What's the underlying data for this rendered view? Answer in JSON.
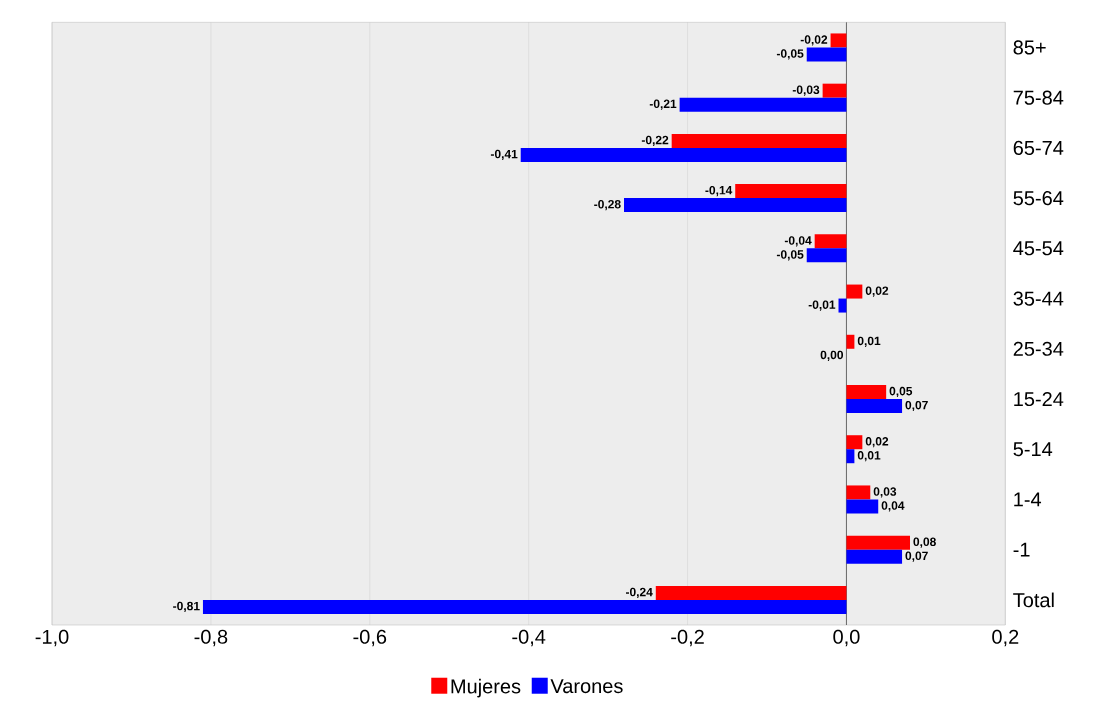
{
  "chart_data": {
    "type": "bar",
    "orientation": "horizontal",
    "categories": [
      "85+",
      "75-84",
      "65-74",
      "55-64",
      "45-54",
      "35-44",
      "25-34",
      "15-24",
      "5-14",
      "1-4",
      "-1",
      "Total"
    ],
    "series": [
      {
        "name": "Mujeres",
        "color": "#ff0000",
        "values": [
          -0.02,
          -0.03,
          -0.22,
          -0.14,
          -0.04,
          0.02,
          0.01,
          0.05,
          0.02,
          0.03,
          0.08,
          -0.24
        ],
        "value_labels": [
          "-0,02",
          "-0,03",
          "-0,22",
          "-0,14",
          "-0,04",
          "0,02",
          "0,01",
          "0,05",
          "0,02",
          "0,03",
          "0,08",
          "-0,24"
        ]
      },
      {
        "name": "Varones",
        "color": "#0000ff",
        "values": [
          -0.05,
          -0.21,
          -0.41,
          -0.28,
          -0.05,
          -0.01,
          0.0,
          0.07,
          0.01,
          0.04,
          0.07,
          -0.81
        ],
        "value_labels": [
          "-0,05",
          "-0,21",
          "-0,41",
          "-0,28",
          "-0,05",
          "-0,01",
          "0,00",
          "0,07",
          "0,01",
          "0,04",
          "0,07",
          "-0,81"
        ]
      }
    ],
    "xlim": [
      -1.0,
      0.2
    ],
    "xticks": [
      {
        "value": -1.0,
        "label": "-1,0"
      },
      {
        "value": -0.8,
        "label": "-0,8"
      },
      {
        "value": -0.6,
        "label": "-0,6"
      },
      {
        "value": -0.4,
        "label": "-0,4"
      },
      {
        "value": -0.2,
        "label": "-0,2"
      },
      {
        "value": 0.0,
        "label": "0,0"
      },
      {
        "value": 0.2,
        "label": "0,2"
      }
    ],
    "grid": "x",
    "legend": "bottom"
  }
}
